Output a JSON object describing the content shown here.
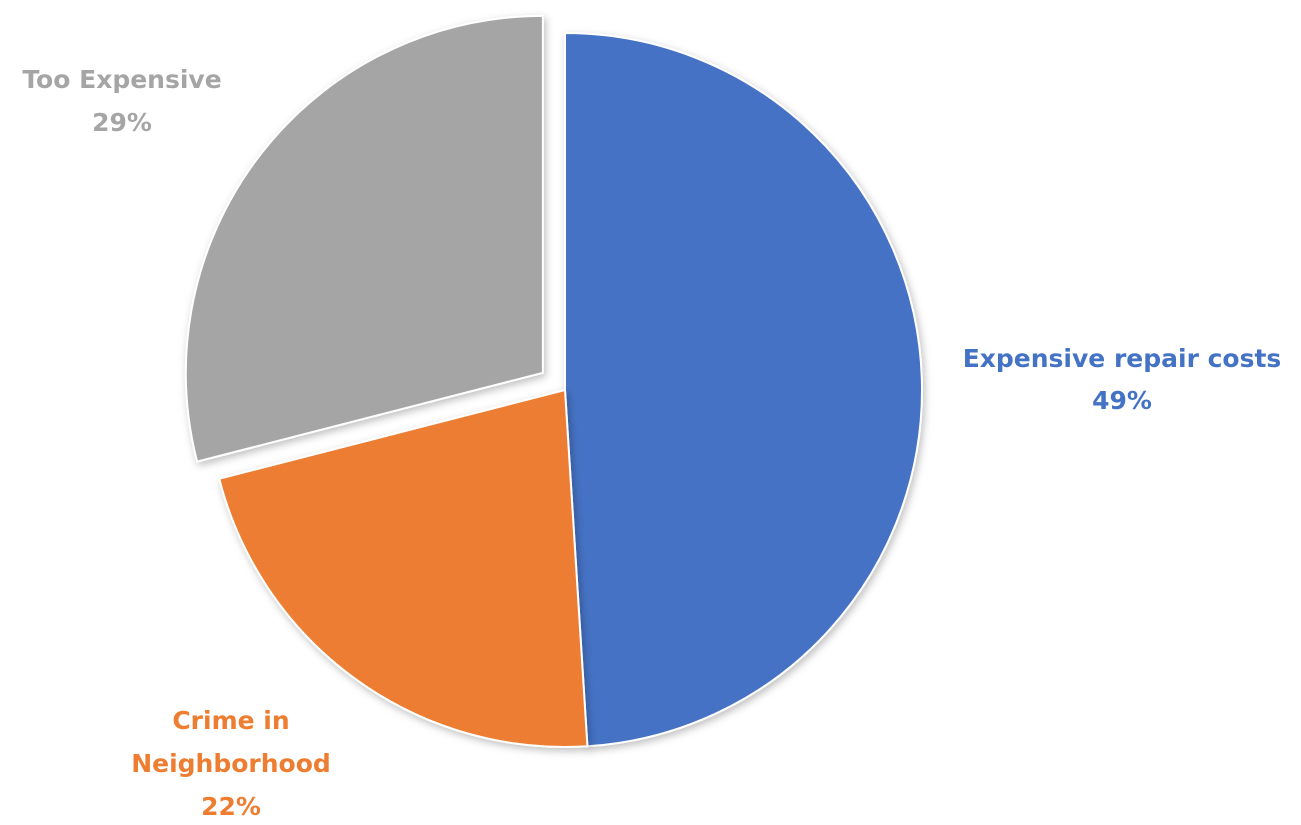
{
  "chart_data": {
    "type": "pie",
    "title": "",
    "slices": [
      {
        "label": "Expensive repair costs",
        "value": 49,
        "percent_label": "49%",
        "color": "#4472C4",
        "label_color": "#4472C4",
        "exploded": false
      },
      {
        "label": "Crime in Neighborhood",
        "value": 22,
        "percent_label": "22%",
        "color": "#ED7D31",
        "label_color": "#ED7D31",
        "exploded": false
      },
      {
        "label": "Too Expensive",
        "value": 29,
        "percent_label": "29%",
        "color": "#A5A5A5",
        "label_color": "#A5A5A5",
        "exploded": true
      }
    ],
    "start_angle": "12 o'clock",
    "direction": "clockwise",
    "legend": "none"
  }
}
